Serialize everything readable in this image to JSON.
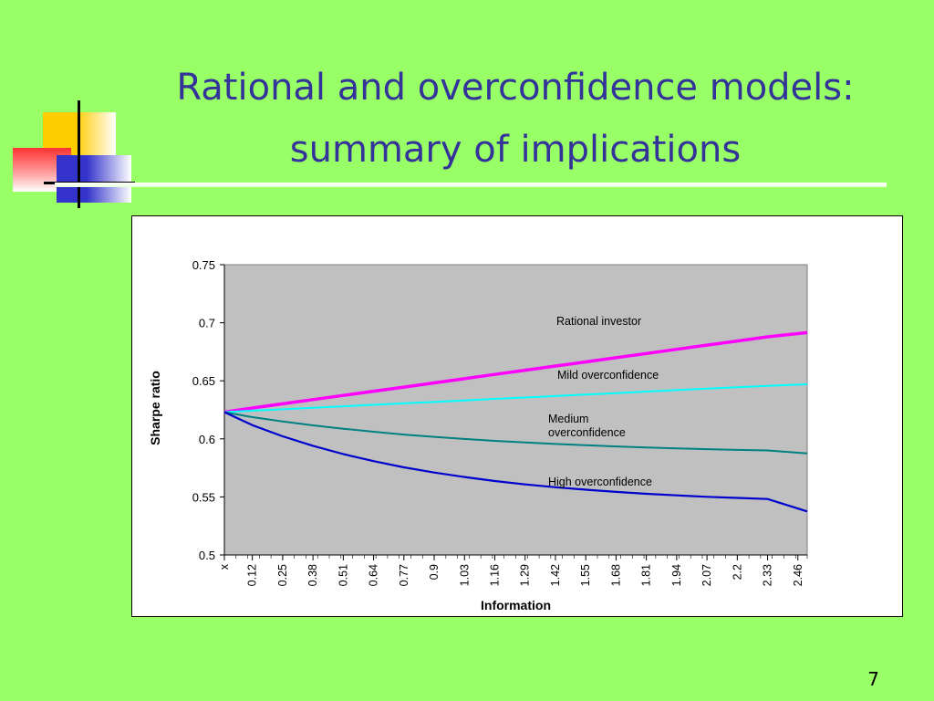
{
  "slide": {
    "title_line1": "Rational and overconfidence models:",
    "title_line2": "summary of implications",
    "page_number": "7"
  },
  "chart_data": {
    "type": "line",
    "xlabel": "Information",
    "ylabel": "Sharpe ratio",
    "ylim": [
      0.5,
      0.75
    ],
    "yticks": [
      "0.5",
      "0.55",
      "0.6",
      "0.65",
      "0.7",
      "0.75"
    ],
    "x": [
      "x",
      "0.12",
      "0.25",
      "0.38",
      "0.51",
      "0.64",
      "0.77",
      "0.9",
      "1.03",
      "1.16",
      "1.29",
      "1.42",
      "1.55",
      "1.68",
      "1.81",
      "1.94",
      "2.07",
      "2.2",
      "2.33",
      "2.46"
    ],
    "plot_background": "#c0c0c0",
    "grid": false,
    "series": [
      {
        "name": "Rational investor",
        "color": "#ff00ff",
        "values": [
          0.623,
          0.6266,
          0.6302,
          0.6338,
          0.6374,
          0.641,
          0.6446,
          0.6482,
          0.6518,
          0.6555,
          0.6591,
          0.6627,
          0.6663,
          0.6699,
          0.6735,
          0.6771,
          0.6807,
          0.6843,
          0.6879,
          0.6915
        ]
      },
      {
        "name": "Mild overconfidence",
        "color": "#00ffff",
        "values": [
          0.623,
          0.6243,
          0.6255,
          0.6268,
          0.6281,
          0.6293,
          0.6306,
          0.6318,
          0.6331,
          0.6344,
          0.6356,
          0.6369,
          0.6382,
          0.6394,
          0.6407,
          0.642,
          0.6432,
          0.6445,
          0.6457,
          0.647
        ]
      },
      {
        "name": "Medium overconfidence",
        "color": "#008080",
        "values": [
          0.623,
          0.6187,
          0.6149,
          0.6116,
          0.6087,
          0.6061,
          0.6037,
          0.6017,
          0.5999,
          0.5983,
          0.5969,
          0.5956,
          0.5945,
          0.5935,
          0.5926,
          0.5918,
          0.5911,
          0.5905,
          0.59,
          0.5875
        ]
      },
      {
        "name": "High overconfidence",
        "color": "#0000cc",
        "values": [
          0.623,
          0.6118,
          0.6022,
          0.594,
          0.5869,
          0.5808,
          0.5755,
          0.571,
          0.5671,
          0.5637,
          0.5608,
          0.5583,
          0.5562,
          0.5543,
          0.5527,
          0.5513,
          0.5501,
          0.5491,
          0.5482,
          0.5375
        ]
      }
    ],
    "annotations": [
      {
        "series": "Rational investor",
        "lines": [
          "Rational investor"
        ]
      },
      {
        "series": "Mild overconfidence",
        "lines": [
          "Mild overconfidence"
        ]
      },
      {
        "series": "Medium overconfidence",
        "lines": [
          "Medium",
          "overconfidence"
        ]
      },
      {
        "series": "High overconfidence",
        "lines": [
          "High overconfidence"
        ]
      }
    ]
  }
}
